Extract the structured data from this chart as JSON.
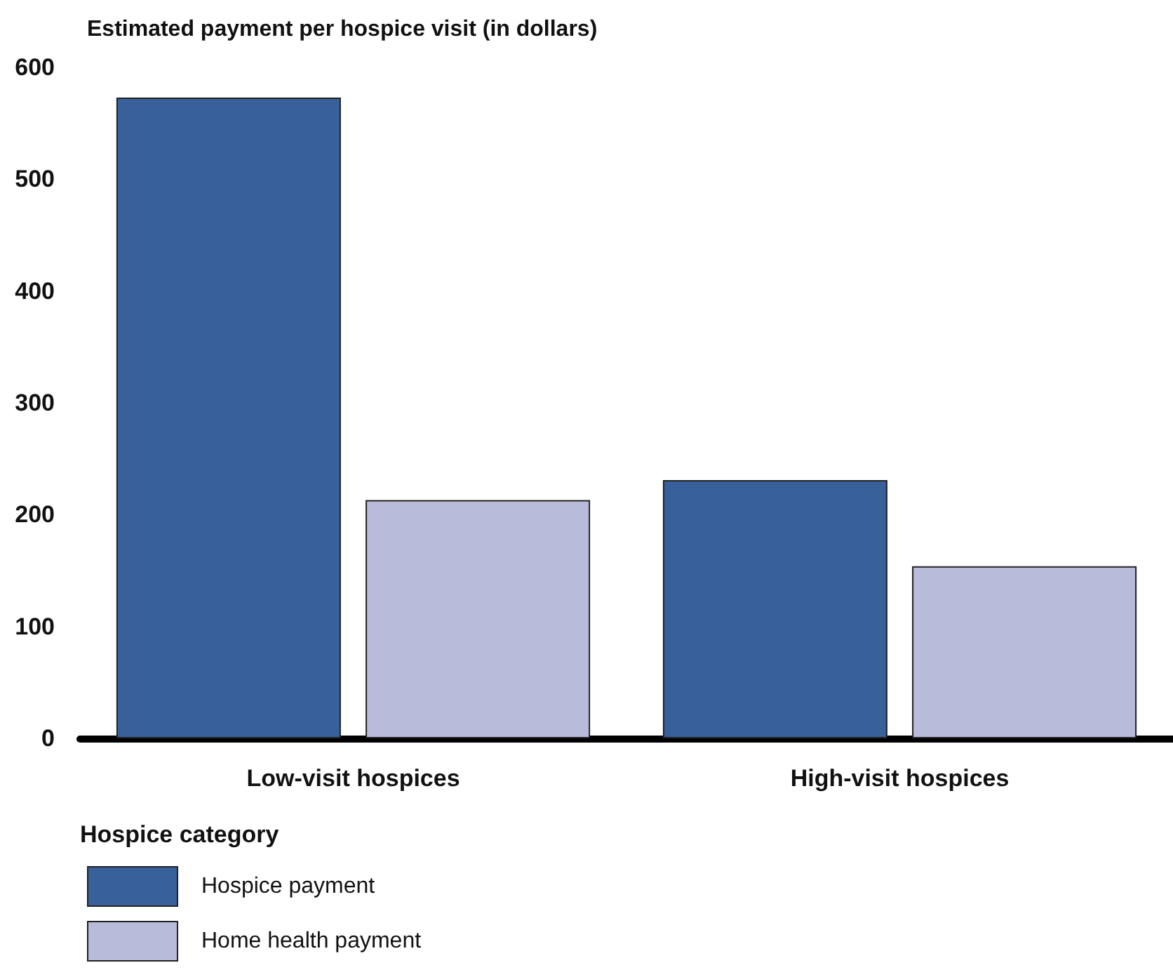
{
  "chart_data": {
    "type": "bar",
    "title": "Estimated payment per hospice visit (in dollars)",
    "xlabel": "Hospice category",
    "categories": [
      "Low-visit hospices",
      "High-visit hospices"
    ],
    "series": [
      {
        "name": "Hospice payment",
        "color": "#38609a",
        "values": [
          573,
          231
        ]
      },
      {
        "name": "Home health payment",
        "color": "#b8bbd9",
        "values": [
          213,
          154
        ]
      }
    ],
    "ylim": [
      0,
      600
    ],
    "yticks": [
      0,
      100,
      200,
      300,
      400,
      500,
      600
    ],
    "grid": false,
    "legend": "bottom left"
  }
}
